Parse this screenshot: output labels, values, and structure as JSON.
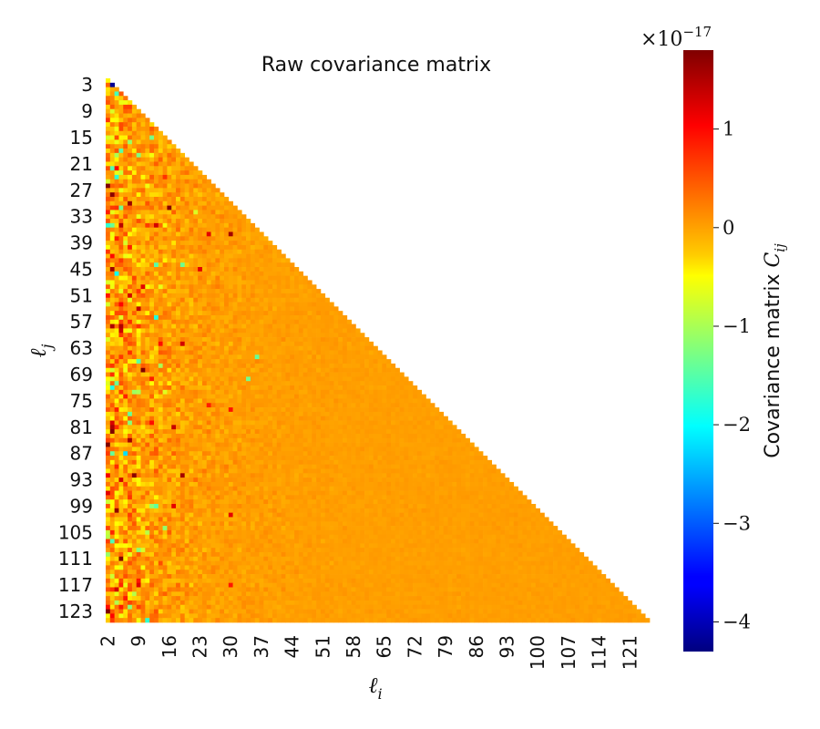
{
  "chart_data": {
    "type": "heatmap",
    "title": "Raw covariance matrix",
    "xlabel_var": "ℓ",
    "xlabel_sub": "i",
    "ylabel_var": "ℓ",
    "ylabel_sub": "j",
    "colorbar_label": "Covariance matrix",
    "colorbar_label_var": "C",
    "colorbar_label_sub": "ij",
    "colorbar_offset_base": "×10",
    "colorbar_offset_exp": "−17",
    "colormap": "jet",
    "mask": "upper triangle (matrix shown as lower triangle)",
    "matrix_range": [
      2,
      125
    ],
    "colorbar_range": [
      -4.3,
      1.8
    ],
    "colorbar_ticks": [
      1,
      0,
      -1,
      -2,
      -3,
      -4
    ],
    "colorbar_tick_labels": [
      "1",
      "0",
      "−1",
      "−2",
      "−3",
      "−4"
    ],
    "x_ticks": [
      2,
      9,
      16,
      23,
      30,
      37,
      44,
      51,
      58,
      65,
      72,
      79,
      86,
      93,
      100,
      107,
      114,
      121
    ],
    "x_tick_labels": [
      "2",
      "9",
      "16",
      "23",
      "30",
      "37",
      "44",
      "51",
      "58",
      "65",
      "72",
      "79",
      "86",
      "93",
      "100",
      "107",
      "114",
      "121"
    ],
    "y_ticks": [
      3,
      9,
      15,
      21,
      27,
      33,
      39,
      45,
      51,
      57,
      63,
      69,
      75,
      81,
      87,
      93,
      99,
      105,
      111,
      117,
      123
    ],
    "y_tick_labels": [
      "3",
      "9",
      "15",
      "21",
      "27",
      "33",
      "39",
      "45",
      "51",
      "57",
      "63",
      "69",
      "75",
      "81",
      "87",
      "93",
      "99",
      "105",
      "111",
      "117",
      "123"
    ],
    "value_pattern": "diagonal and low-ℓ corner mostly ≈0 (orange), with strong positive (red) and negative (green/cyan) scatter concentrated at ℓ < 40; fluctuations decay toward ≈0 at high ℓ"
  }
}
